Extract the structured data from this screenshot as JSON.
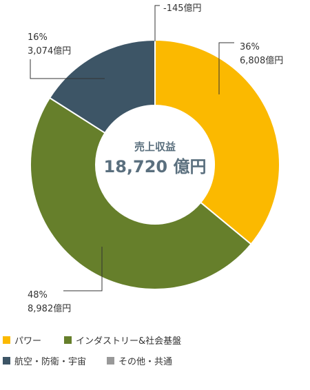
{
  "chart_data": {
    "type": "pie",
    "center_title": "売上収益",
    "center_value": "18,720 億円",
    "slices": [
      {
        "name": "パワー",
        "percent": 36,
        "percent_label": "36%",
        "amount_label": "6,808億円",
        "color": "#fbb900"
      },
      {
        "name": "インダストリー&社会基盤",
        "percent": 48,
        "percent_label": "48%",
        "amount_label": "8,982億円",
        "color": "#667f2b"
      },
      {
        "name": "航空・防衛・宇宙",
        "percent": 16,
        "percent_label": "16%",
        "amount_label": "3,074億円",
        "color": "#3d5566"
      },
      {
        "name": "その他・共通",
        "percent": 0,
        "percent_label": "",
        "amount_label": "-145億円",
        "color": "#999999"
      }
    ],
    "legend_placement": "bottom"
  }
}
